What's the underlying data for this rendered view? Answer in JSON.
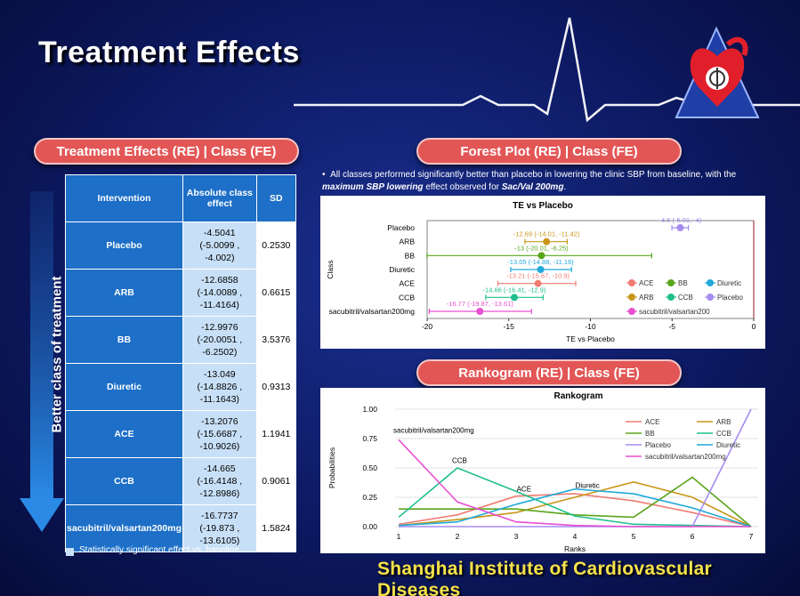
{
  "title": "Treatment Effects",
  "left_header": "Treatment Effects (RE) | Class (FE)",
  "vertical_label": "Better class of treatment",
  "table": {
    "headers": [
      "Intervention",
      "Absolute class effect",
      "SD"
    ],
    "rows": [
      {
        "intervention": "Placebo",
        "effect": "-4.5041",
        "ci": "(-5.0099 ,  -4.002)",
        "sd": "0.2530"
      },
      {
        "intervention": "ARB",
        "effect": "-12.6858",
        "ci": "(-14.0089 ,  -11.4164)",
        "sd": "0.6615"
      },
      {
        "intervention": "BB",
        "effect": "-12.9976",
        "ci": "(-20.0051 ,  -6.2502)",
        "sd": "3.5376"
      },
      {
        "intervention": "Diuretic",
        "effect": "-13.049",
        "ci": "(-14.8826 ,  -11.1643)",
        "sd": "0.9313"
      },
      {
        "intervention": "ACE",
        "effect": "-13.2076",
        "ci": "(-15.6687 ,  -10.9026)",
        "sd": "1.1941"
      },
      {
        "intervention": "CCB",
        "effect": "-14.665",
        "ci": "(-16.4148 ,  -12.8986)",
        "sd": "0.9061"
      },
      {
        "intervention": "sacubitril/valsartan200mg",
        "effect": "-16.7737",
        "ci": "(-19.873 ,  -13.6105)",
        "sd": "1.5824"
      }
    ]
  },
  "legend_note": "Statistically significant effect vs. baseline",
  "forest_header": "Forest Plot (RE) | Class (FE)",
  "bullet": {
    "text_a": "All classes performed significantly better than placebo in lowering the clinic SBP from baseline, with the ",
    "text_b": "maximum SBP lowering",
    "text_c": " effect observed for ",
    "text_d": "Sac/Val 200mg",
    "text_e": "."
  },
  "rank_header": "Rankogram (RE) | Class (FE)",
  "footer": "Shanghai Institute of Cardiovascular Diseases",
  "colors": {
    "ACE": "#f07b73",
    "ARB": "#c9961a",
    "BB": "#5aa51c",
    "CCB": "#1fbf8d",
    "Diuretic": "#1fa9d9",
    "Placebo": "#a68cf0",
    "sacubitril/valsartan200mg": "#e84fd1",
    "pill": "#e35656",
    "table_header": "#1d6fc7",
    "table_cell": "#c8e0f7"
  },
  "chart_data": [
    {
      "type": "scatter",
      "title": "TE vs Placebo",
      "xlabel": "TE vs Placebo",
      "ylabel": "Class",
      "xlim": [
        -20,
        0
      ],
      "xticks": [
        -20,
        -15,
        -10,
        -5,
        0
      ],
      "categories": [
        "Placebo",
        "ARB",
        "BB",
        "Diuretic",
        "ACE",
        "CCB",
        "sacubitril/valsartan200mg"
      ],
      "points": [
        {
          "class": "Placebo",
          "est": -4.5,
          "lo": -5.01,
          "hi": -4,
          "label": "-4.5 (-5.01, -4)"
        },
        {
          "class": "ARB",
          "est": -12.69,
          "lo": -14.01,
          "hi": -11.42,
          "label": "-12.69 (-14.01, -11.42)"
        },
        {
          "class": "BB",
          "est": -13,
          "lo": -20.01,
          "hi": -6.25,
          "label": "-13 (-20.01, -6.25)"
        },
        {
          "class": "Diuretic",
          "est": -13.05,
          "lo": -14.88,
          "hi": -11.16,
          "label": "-13.05 (-14.88, -11.16)"
        },
        {
          "class": "ACE",
          "est": -13.21,
          "lo": -15.67,
          "hi": -10.9,
          "label": "-13.21 (-15.67, -10.9)"
        },
        {
          "class": "CCB",
          "est": -14.66,
          "lo": -16.41,
          "hi": -12.9,
          "label": "-14.66 (-16.41, -12.9)"
        },
        {
          "class": "sacubitril/valsartan200mg",
          "est": -16.77,
          "lo": -19.87,
          "hi": -13.61,
          "label": "-16.77 (-19.87, -13.61)"
        }
      ],
      "legend": [
        {
          "name": "ACE",
          "key": "ACE"
        },
        {
          "name": "BB",
          "key": "BB"
        },
        {
          "name": "Diuretic",
          "key": "Diuretic"
        },
        {
          "name": "ARB",
          "key": "ARB"
        },
        {
          "name": "CCB",
          "key": "CCB"
        },
        {
          "name": "Placebo",
          "key": "Placebo"
        },
        {
          "name": "sacubitril/valsartan200",
          "key": "sacubitril/valsartan200mg"
        }
      ],
      "legend_position": "bottom-right"
    },
    {
      "type": "line",
      "title": "Rankogram",
      "xlabel": "Ranks",
      "ylabel": "Probabilities",
      "x": [
        1,
        2,
        3,
        4,
        5,
        6,
        7
      ],
      "ylim": [
        0,
        1
      ],
      "yticks": [
        "0.00",
        "0.25",
        "0.50",
        "0.75",
        "1.00"
      ],
      "series": [
        {
          "name": "ACE",
          "values": [
            0.02,
            0.1,
            0.26,
            0.28,
            0.22,
            0.12,
            0.0
          ]
        },
        {
          "name": "ARB",
          "values": [
            0.01,
            0.06,
            0.12,
            0.25,
            0.38,
            0.25,
            0.0
          ]
        },
        {
          "name": "BB",
          "values": [
            0.15,
            0.15,
            0.15,
            0.1,
            0.08,
            0.42,
            0.0
          ]
        },
        {
          "name": "CCB",
          "values": [
            0.08,
            0.5,
            0.3,
            0.09,
            0.02,
            0.01,
            0.0
          ]
        },
        {
          "name": "Placebo",
          "values": [
            0.0,
            0.0,
            0.0,
            0.0,
            0.0,
            0.0,
            1.0
          ]
        },
        {
          "name": "Diuretic",
          "values": [
            0.01,
            0.04,
            0.19,
            0.32,
            0.28,
            0.16,
            0.0
          ]
        },
        {
          "name": "sacubitril/valsartan200mg",
          "values": [
            0.74,
            0.21,
            0.04,
            0.01,
            0.0,
            0.0,
            0.0
          ]
        }
      ],
      "annotations": [
        {
          "text": "sacubitril/valsartan200mg",
          "x": 1,
          "y": 0.8
        },
        {
          "text": "CCB",
          "x": 2,
          "y": 0.54
        },
        {
          "text": "ACE",
          "x": 3.1,
          "y": 0.3
        },
        {
          "text": "Diuretic",
          "x": 4.1,
          "y": 0.33
        }
      ],
      "legend_position": "top-right"
    }
  ]
}
